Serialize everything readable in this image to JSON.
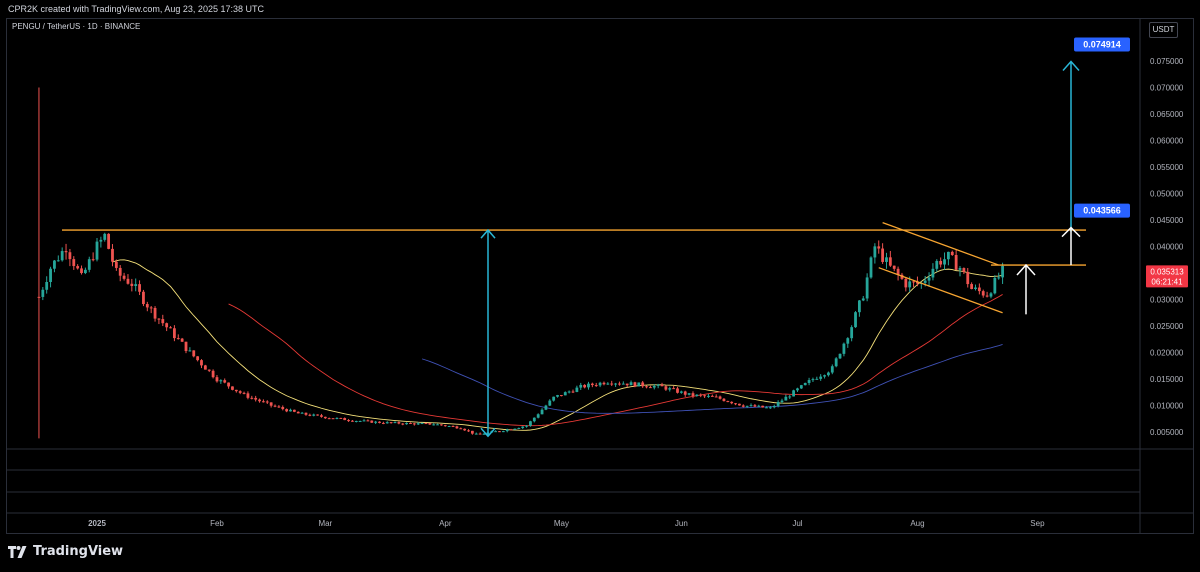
{
  "header": {
    "created_by": "CPR2K created with TradingView.com, Aug 23, 2025 17:38 UTC"
  },
  "symbol_line": "PENGU / TetherUS · 1D · BINANCE",
  "currency_label": "USDT",
  "price_axis": {
    "ticks": [
      "0.075000",
      "0.070000",
      "0.065000",
      "0.060000",
      "0.055000",
      "0.050000",
      "0.045000",
      "0.040000",
      "0.030000",
      "0.025000",
      "0.020000",
      "0.015000",
      "0.010000",
      "0.005000"
    ],
    "current_price": "0.035313",
    "countdown": "06:21:41"
  },
  "time_axis": [
    "2025",
    "Feb",
    "Mar",
    "Apr",
    "May",
    "Jun",
    "Jul",
    "Aug",
    "Sep"
  ],
  "annotations": {
    "target_label": "0.074914",
    "breakout_label": "0.043566"
  },
  "colors": {
    "bull": "#26a69a",
    "bear": "#ef5350",
    "resistance": "#f7a531",
    "arrow": "#29b6d6",
    "label": "#2962ff",
    "ema_short": "#f5e17a",
    "ema_mid": "#e53935",
    "ema_long": "#3f51b5"
  },
  "footer": {
    "brand": "TradingView"
  },
  "chart_data": {
    "type": "candlestick",
    "title": "PENGU / TetherUS · 1D · BINANCE",
    "ylim": [
      0.002,
      0.078
    ],
    "x": [
      "2024-12-17",
      "2024-12-20",
      "2024-12-24",
      "2024-12-28",
      "2025-01-01",
      "2025-01-03",
      "2025-01-06",
      "2025-01-10",
      "2025-01-15",
      "2025-01-20",
      "2025-01-25",
      "2025-02-01",
      "2025-02-08",
      "2025-02-15",
      "2025-02-22",
      "2025-03-01",
      "2025-03-08",
      "2025-03-15",
      "2025-03-22",
      "2025-03-29",
      "2025-04-05",
      "2025-04-09",
      "2025-04-15",
      "2025-04-22",
      "2025-04-29",
      "2025-05-06",
      "2025-05-13",
      "2025-05-20",
      "2025-05-27",
      "2025-06-03",
      "2025-06-10",
      "2025-06-17",
      "2025-06-24",
      "2025-07-01",
      "2025-07-05",
      "2025-07-10",
      "2025-07-15",
      "2025-07-18",
      "2025-07-21",
      "2025-07-25",
      "2025-07-29",
      "2025-08-02",
      "2025-08-06",
      "2025-08-09",
      "2025-08-12",
      "2025-08-15",
      "2025-08-19",
      "2025-08-23"
    ],
    "close": [
      0.0305,
      0.036,
      0.04,
      0.034,
      0.04,
      0.042,
      0.035,
      0.033,
      0.028,
      0.024,
      0.02,
      0.015,
      0.012,
      0.01,
      0.0085,
      0.0078,
      0.0072,
      0.0068,
      0.0066,
      0.0065,
      0.0058,
      0.0045,
      0.0052,
      0.0062,
      0.0115,
      0.0135,
      0.0145,
      0.014,
      0.0135,
      0.012,
      0.0115,
      0.01,
      0.0095,
      0.013,
      0.015,
      0.017,
      0.025,
      0.031,
      0.04,
      0.036,
      0.033,
      0.033,
      0.037,
      0.038,
      0.036,
      0.032,
      0.031,
      0.0353
    ],
    "high_low_extremes": {
      "high": 0.07,
      "low": 0.0038
    },
    "resistance_level": 0.0431,
    "breakout_level": 0.043566,
    "target_level": 0.074914,
    "channel": {
      "upper": [
        [
          "2025-07-23",
          0.0445
        ],
        [
          "2025-08-22",
          0.0365
        ]
      ],
      "lower": [
        [
          "2025-07-22",
          0.036
        ],
        [
          "2025-08-23",
          0.0275
        ]
      ]
    }
  }
}
